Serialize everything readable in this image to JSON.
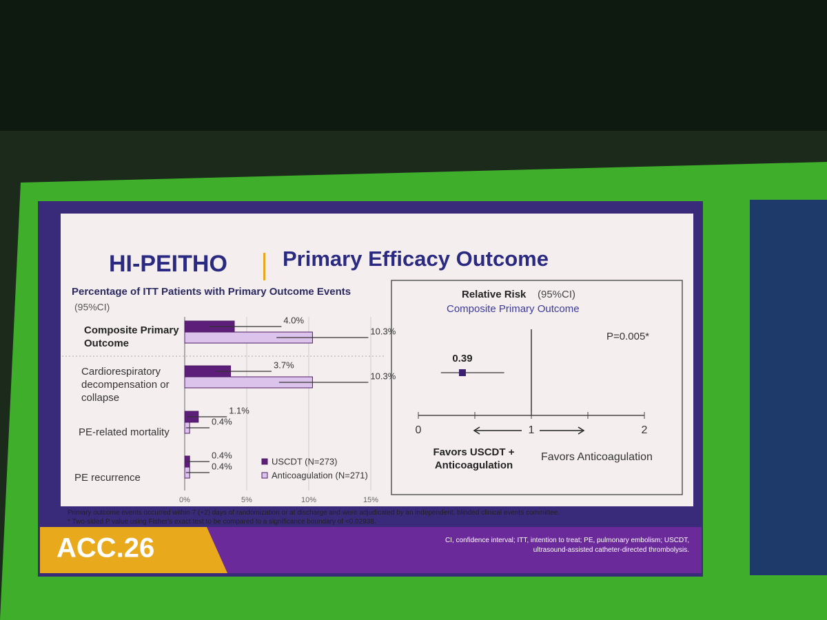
{
  "title": "HI-PEITHO",
  "subtitle": "Primary Efficacy Outcome",
  "chart_data": [
    {
      "type": "hbar",
      "title": "Percentage of ITT Patients with Primary Outcome Events",
      "subtitle": "(95%CI)",
      "categories": [
        "Composite Primary Outcome",
        "Cardiorespiratory decompensation or collapse",
        "PE-related mortality",
        "PE recurrence"
      ],
      "series": [
        {
          "name": "USCDT (N=273)",
          "color": "#5c1e78",
          "values": [
            4.0,
            3.7,
            1.1,
            0.4
          ],
          "value_labels": [
            "4.0%",
            "3.7%",
            "1.1%",
            "0.4%"
          ],
          "ci": [
            [
              2.0,
              7.8
            ],
            [
              2.5,
              7.0
            ],
            [
              0.2,
              3.4
            ],
            [
              0.1,
              2.0
            ]
          ]
        },
        {
          "name": "Anticoagulation (N=271)",
          "color": "#dcc3ec",
          "values": [
            10.3,
            10.3,
            0.4,
            0.4
          ],
          "value_labels": [
            "10.3%",
            "10.3%",
            "0.4%",
            "0.4%"
          ],
          "ci": [
            [
              7.4,
              14.8
            ],
            [
              7.6,
              14.8
            ],
            [
              0.1,
              2.0
            ],
            [
              0.1,
              2.0
            ]
          ]
        }
      ],
      "xlim": [
        0,
        15
      ],
      "xticks": [
        {
          "value": 0,
          "label": "0%"
        },
        {
          "value": 5,
          "label": "5%"
        },
        {
          "value": 10,
          "label": "10%"
        },
        {
          "value": 15,
          "label": "15%"
        }
      ],
      "grid": true
    },
    {
      "type": "forest",
      "title": "Relative Risk",
      "title_suffix": "(95%CI)",
      "subtitle": "Composite Primary Outcome",
      "annotation": "P=0.005*",
      "values": [
        0.39
      ],
      "value_labels": [
        "0.39"
      ],
      "ci": [
        [
          0.2,
          0.76
        ]
      ],
      "color": "#3a1f6e",
      "xlim": [
        0,
        2
      ],
      "xticks": [
        0,
        1,
        2
      ],
      "minor_xticks": [
        0.5,
        1.5
      ],
      "left_label": "Favors USCDT + Anticoagulation",
      "right_label": "Favors Anticoagulation"
    }
  ],
  "footnotes": [
    "Primary outcome events occurred within 7 (+2) days of randomization or at discharge and were adjudicated by an independent, blinded clinical events committee.",
    "* Two-sided P value using Fisher's exact test to be compared to a significance boundary of <0.02938."
  ],
  "conference": "ACC.26",
  "abbreviations": "CI, confidence interval; ITT, intention to treat; PE, pulmonary embolism; USCDT, ultrasound-assisted catheter-directed thrombolysis."
}
